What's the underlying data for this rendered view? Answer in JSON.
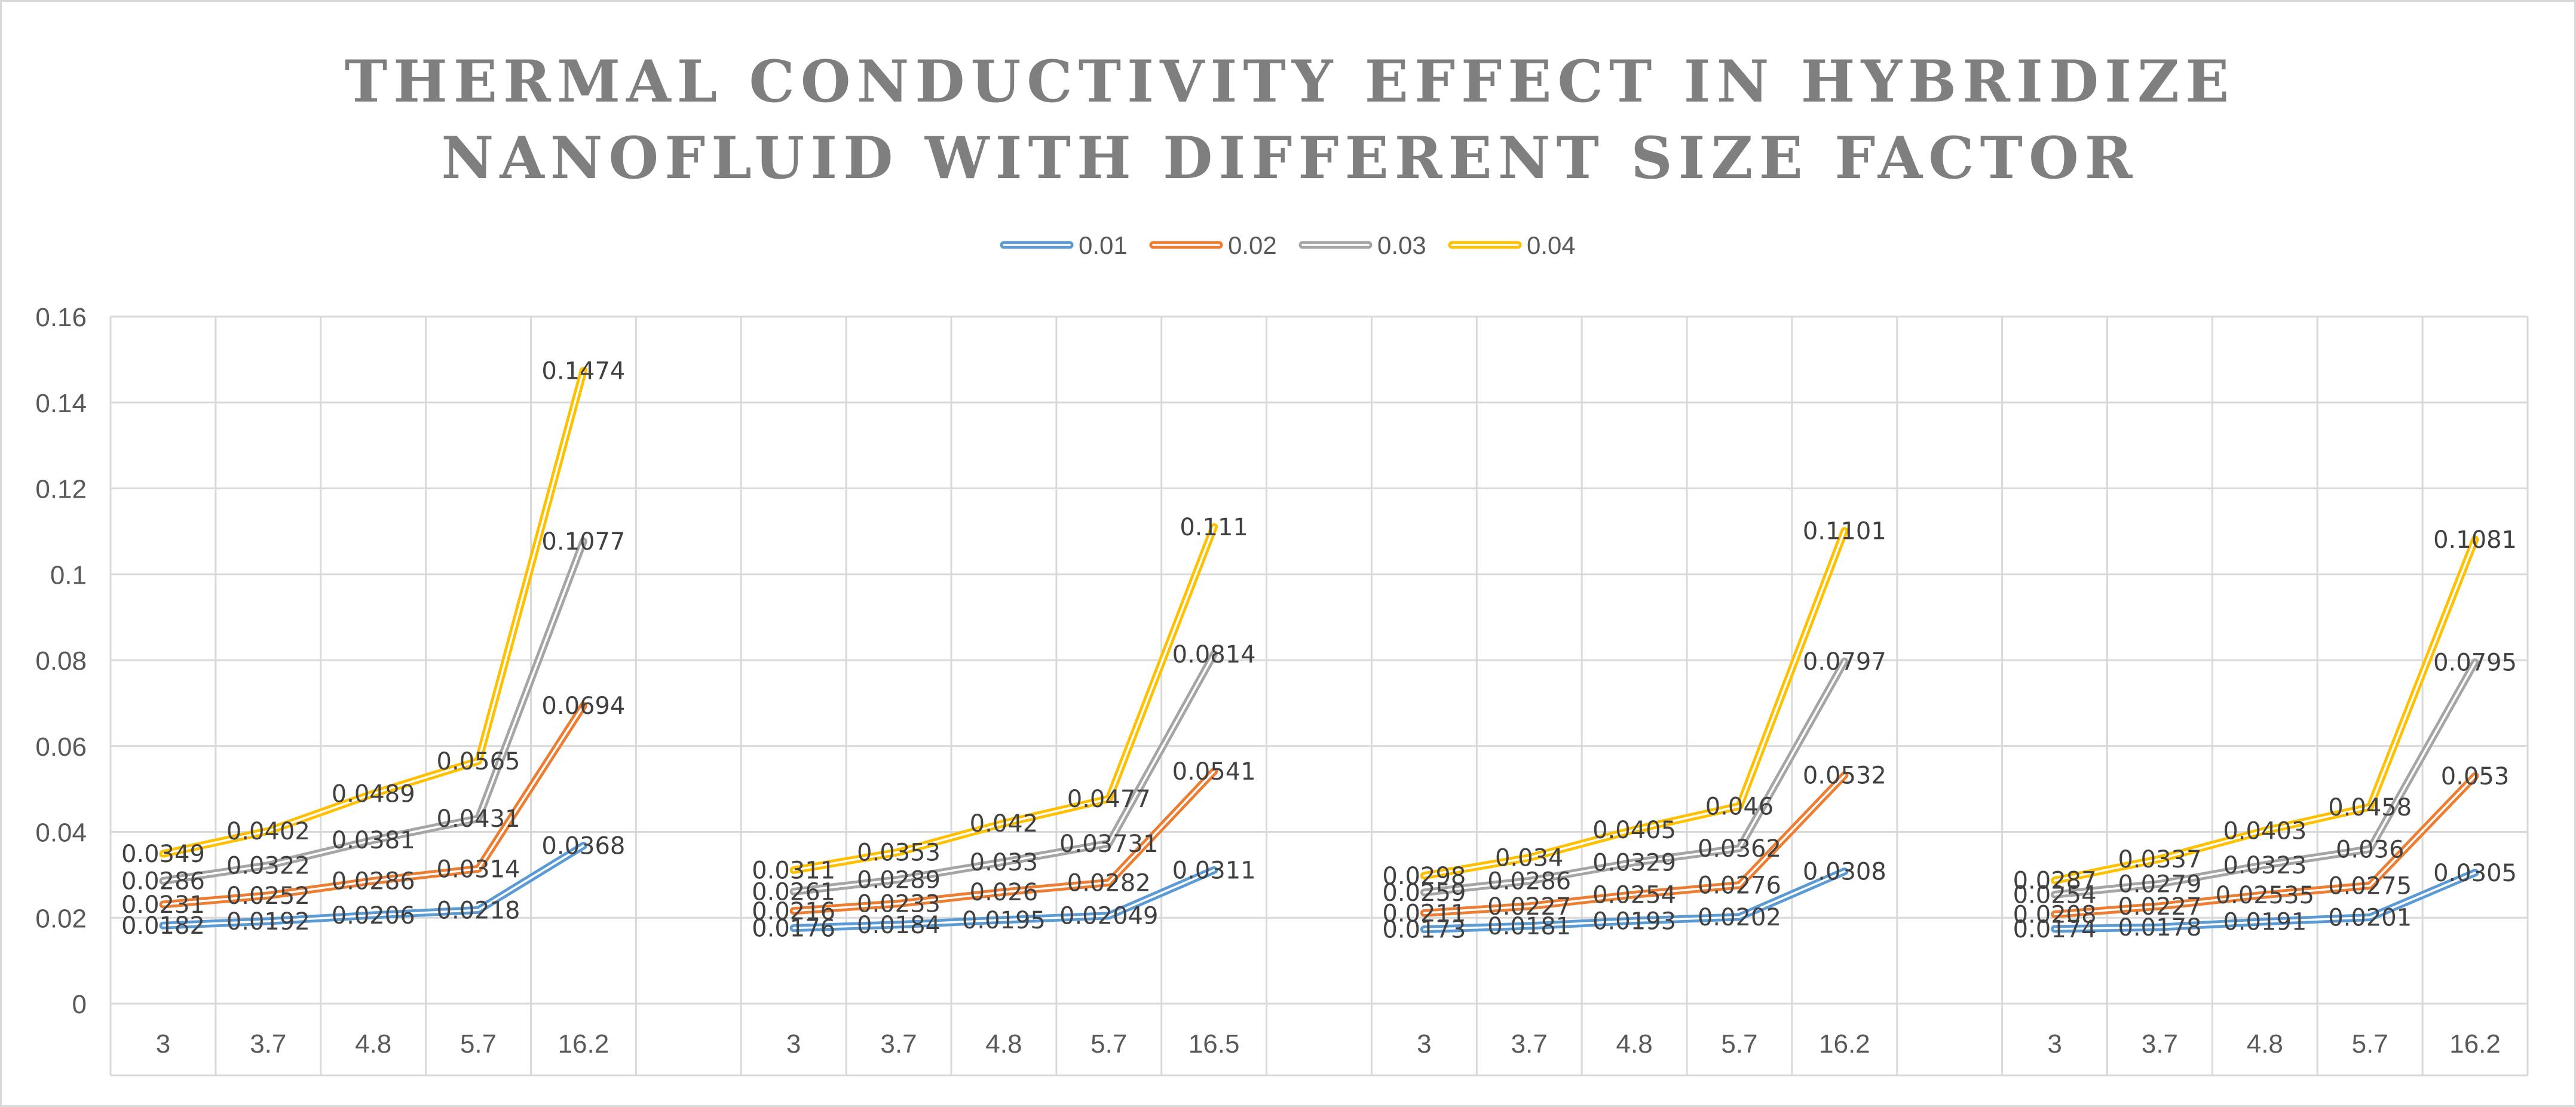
{
  "chart_data": {
    "type": "line",
    "title_line1": "THERMAL CONDUCTIVITY  EFFECT IN HYBRIDIZE",
    "title_line2": "NANOFLUID WITH DIFFERENT SIZE FACTOR",
    "xlabel": "",
    "ylabel": "",
    "ylim": [
      0,
      0.16
    ],
    "ytick_step": 0.02,
    "yticks": [
      "0",
      "0.02",
      "0.04",
      "0.06",
      "0.08",
      "0.1",
      "0.12",
      "0.14",
      "0.16"
    ],
    "grid": true,
    "legend_position": "top",
    "categories": [
      "3",
      "3.7",
      "4.8",
      "5.7",
      "16.2",
      "",
      "3",
      "3.7",
      "4.8",
      "5.7",
      "16.5",
      "",
      "3",
      "3.7",
      "4.8",
      "5.7",
      "16.2",
      "",
      "3",
      "3.7",
      "4.8",
      "5.7",
      "16.2"
    ],
    "series": [
      {
        "name": "0.01",
        "color": "#5b9bd5",
        "groups": [
          {
            "values": [
              0.0182,
              0.0192,
              0.0206,
              0.0218,
              0.0368
            ],
            "labels": [
              "0.0182",
              "0.0192",
              "0.0206",
              "0.0218",
              "0.0368"
            ]
          },
          {
            "values": [
              0.0176,
              0.0184,
              0.0195,
              0.02049,
              0.0311
            ],
            "labels": [
              "0.0176",
              "0.0184",
              "0.0195",
              "0.02049",
              "0.0311"
            ]
          },
          {
            "values": [
              0.0173,
              0.0181,
              0.0193,
              0.0202,
              0.0308
            ],
            "labels": [
              "0.0173",
              "0.0181",
              "0.0193",
              "0.0202",
              "0.0308"
            ]
          },
          {
            "values": [
              0.0174,
              0.0178,
              0.0191,
              0.0201,
              0.0305
            ],
            "labels": [
              "0.0174",
              "0.0178",
              "0.0191",
              "0.0201",
              "0.0305"
            ]
          }
        ]
      },
      {
        "name": "0.02",
        "color": "#ed7d31",
        "groups": [
          {
            "values": [
              0.0231,
              0.0252,
              0.0286,
              0.0314,
              0.0694
            ],
            "labels": [
              "0.0231",
              "0.0252",
              "0.0286",
              "0.0314",
              "0.0694"
            ]
          },
          {
            "values": [
              0.0216,
              0.0233,
              0.026,
              0.0282,
              0.0541
            ],
            "labels": [
              "0.0216",
              "0.0233",
              "0.026",
              "0.0282",
              "0.0541"
            ]
          },
          {
            "values": [
              0.0211,
              0.0227,
              0.0254,
              0.0276,
              0.0532
            ],
            "labels": [
              "0.0211",
              "0.0227",
              "0.0254",
              "0.0276",
              "0.0532"
            ]
          },
          {
            "values": [
              0.0208,
              0.0227,
              0.02535,
              0.0275,
              0.053
            ],
            "labels": [
              "0.0208",
              "0.0227",
              "0.02535",
              "0.0275",
              "0.053"
            ]
          }
        ]
      },
      {
        "name": "0.03",
        "color": "#a5a5a5",
        "groups": [
          {
            "values": [
              0.0286,
              0.0322,
              0.0381,
              0.0431,
              0.1077
            ],
            "labels": [
              "0.0286",
              "0.0322",
              "0.0381",
              "0.0431",
              "0.1077"
            ]
          },
          {
            "values": [
              0.0261,
              0.0289,
              0.033,
              0.03731,
              0.0814
            ],
            "labels": [
              "0.0261",
              "0.0289",
              "0.033",
              "0.03731",
              "0.0814"
            ]
          },
          {
            "values": [
              0.0259,
              0.0286,
              0.0329,
              0.0362,
              0.0797
            ],
            "labels": [
              "0.0259",
              "0.0286",
              "0.0329",
              "0.0362",
              "0.0797"
            ]
          },
          {
            "values": [
              0.0254,
              0.0279,
              0.0323,
              0.036,
              0.0795
            ],
            "labels": [
              "0.0254",
              "0.0279",
              "0.0323",
              "0.036",
              "0.0795"
            ]
          }
        ]
      },
      {
        "name": "0.04",
        "color": "#ffc000",
        "groups": [
          {
            "values": [
              0.0349,
              0.0402,
              0.0489,
              0.0565,
              0.1474
            ],
            "labels": [
              "0.0349",
              "0.0402",
              "0.0489",
              "0.0565",
              "0.1474"
            ]
          },
          {
            "values": [
              0.0311,
              0.0353,
              0.042,
              0.0477,
              0.111
            ],
            "labels": [
              "0.0311",
              "0.0353",
              "0.042",
              "0.0477",
              "0.111"
            ]
          },
          {
            "values": [
              0.0298,
              0.034,
              0.0405,
              0.046,
              0.1101
            ],
            "labels": [
              "0.0298",
              "0.034",
              "0.0405",
              "0.046",
              "0.1101"
            ]
          },
          {
            "values": [
              0.0287,
              0.0337,
              0.0403,
              0.0458,
              0.1081
            ],
            "labels": [
              "0.0287",
              "0.0337",
              "0.0403",
              "0.0458",
              "0.1081"
            ]
          }
        ]
      }
    ]
  }
}
